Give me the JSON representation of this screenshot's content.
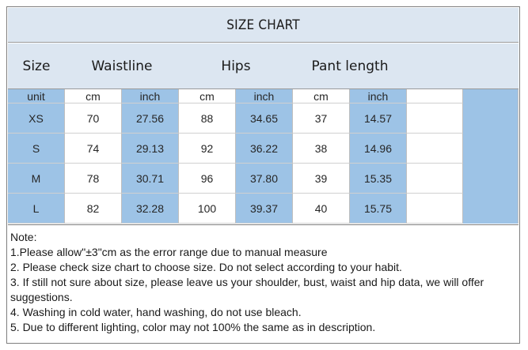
{
  "title": "SIZE CHART",
  "headers": {
    "size": "Size",
    "waistline": "Waistline",
    "hips": "Hips",
    "pant_length": "Pant length"
  },
  "units_row": [
    "unit",
    "cm",
    "inch",
    "cm",
    "inch",
    "cm",
    "inch",
    "",
    ""
  ],
  "rows": [
    [
      "XS",
      "70",
      "27.56",
      "88",
      "34.65",
      "37",
      "14.57",
      "",
      ""
    ],
    [
      "S",
      "74",
      "29.13",
      "92",
      "36.22",
      "38",
      "14.96",
      "",
      ""
    ],
    [
      "M",
      "78",
      "30.71",
      "96",
      "37.80",
      "39",
      "15.35",
      "",
      ""
    ],
    [
      "L",
      "82",
      "32.28",
      "100",
      "39.37",
      "40",
      "15.75",
      "",
      ""
    ]
  ],
  "notes": [
    "Note:",
    "1.Please allow\"±3\"cm as the error range due to manual measure",
    "2. Please check size chart to choose size. Do not select according to your habit.",
    "3. If still not sure about size, please leave us your shoulder, bust, waist and hip data, we will offer suggestions.",
    "4. Washing in cold water, hand washing, do not use bleach.",
    "5. Due to different lighting, color may not 100% the same as in description."
  ],
  "colors": {
    "header_bg": "#dce6f1",
    "column_blue": "#9dc3e6",
    "cell_white": "#ffffff"
  }
}
